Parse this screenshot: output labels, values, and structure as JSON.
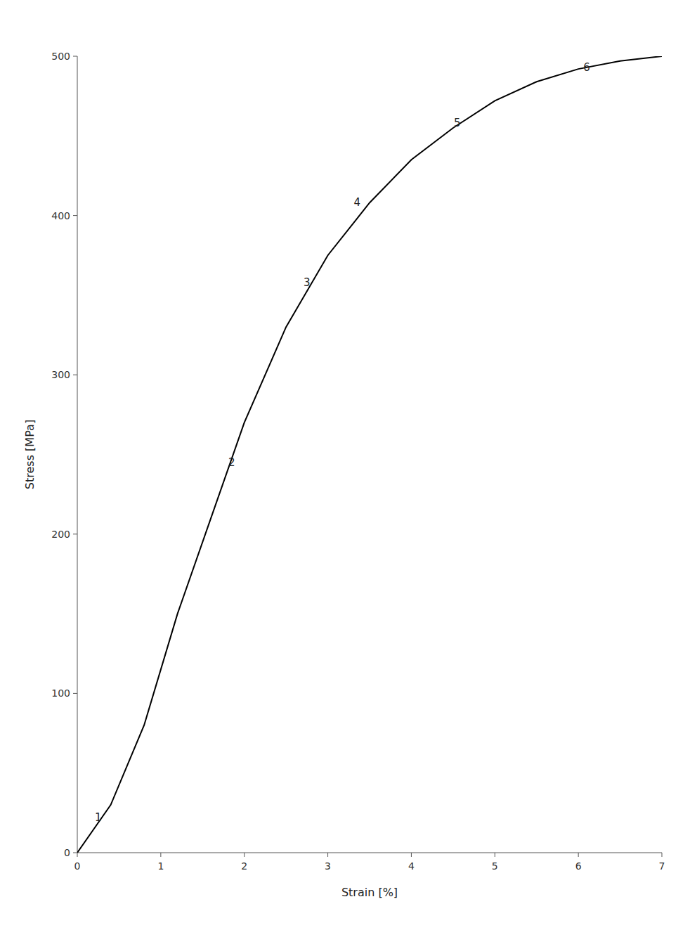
{
  "chart_data": {
    "type": "line",
    "x": [
      0,
      0.4,
      0.8,
      1.2,
      1.6,
      2.0,
      2.5,
      3.0,
      3.5,
      4.0,
      4.5,
      5.0,
      5.5,
      6.0,
      6.5,
      7.0
    ],
    "values": [
      0,
      30,
      80,
      150,
      210,
      270,
      330,
      375,
      408,
      435,
      455,
      472,
      484,
      492,
      497,
      500
    ],
    "color": "#000000",
    "x_label": "Strain [%]",
    "y_label": "Stress [MPa]",
    "xlim": [
      0,
      7
    ],
    "ylim": [
      0,
      500
    ],
    "xticks": [
      0,
      1,
      2,
      3,
      4,
      5,
      6,
      7
    ],
    "yticks": [
      0,
      100,
      200,
      300,
      400,
      500
    ],
    "grid": false,
    "annotations": [
      {
        "x": 0.25,
        "y": 22,
        "text": "1"
      },
      {
        "x": 1.85,
        "y": 245,
        "text": "2"
      },
      {
        "x": 2.75,
        "y": 358,
        "text": "3"
      },
      {
        "x": 3.35,
        "y": 408,
        "text": "4"
      },
      {
        "x": 4.55,
        "y": 458,
        "text": "5"
      },
      {
        "x": 6.1,
        "y": 493,
        "text": "6"
      }
    ]
  }
}
